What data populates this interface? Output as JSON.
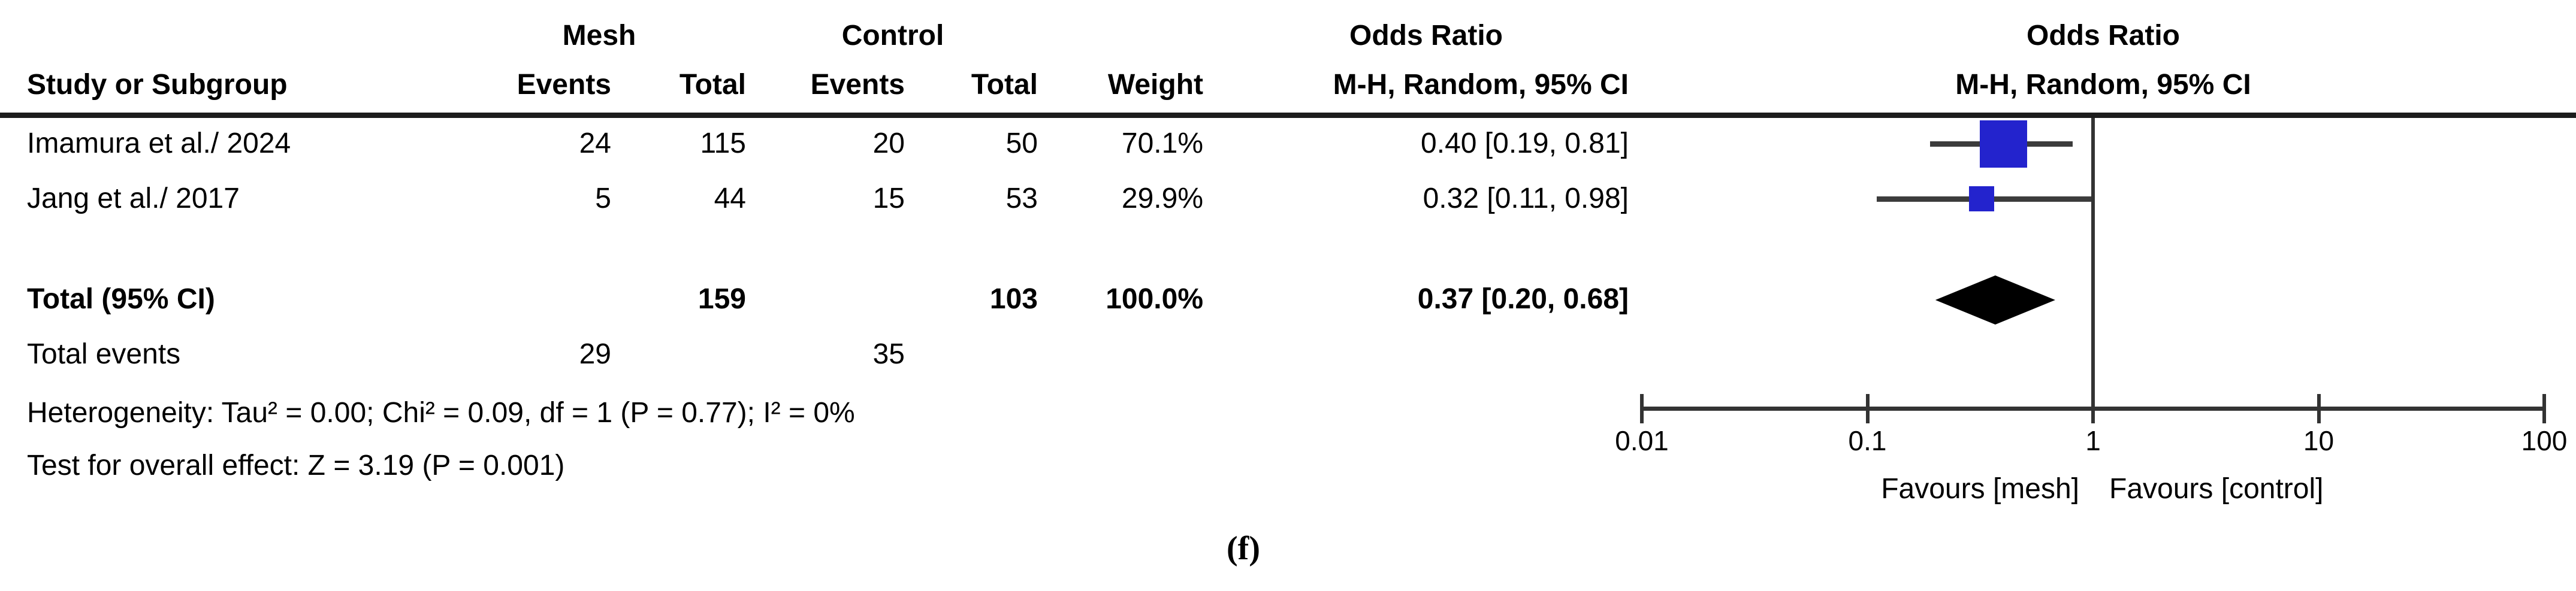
{
  "table": {
    "headers": {
      "group_mesh": "Mesh",
      "group_control": "Control",
      "study": "Study or Subgroup",
      "mesh_events": "Events",
      "mesh_total": "Total",
      "ctrl_events": "Events",
      "ctrl_total": "Total",
      "weight": "Weight",
      "or_col_line1": "Odds Ratio",
      "or_col_line2": "M-H, Random, 95% CI",
      "plot_col_line1": "Odds Ratio",
      "plot_col_line2": "M-H, Random, 95% CI"
    },
    "rows": [
      {
        "study": "Imamura et al./ 2024",
        "mesh_events": "24",
        "mesh_total": "115",
        "ctrl_events": "20",
        "ctrl_total": "50",
        "weight": "70.1%",
        "or_ci": "0.40 [0.19, 0.81]"
      },
      {
        "study": "Jang et al./ 2017",
        "mesh_events": "5",
        "mesh_total": "44",
        "ctrl_events": "15",
        "ctrl_total": "53",
        "weight": "29.9%",
        "or_ci": "0.32 [0.11, 0.98]"
      }
    ],
    "total_row": {
      "label": "Total (95% CI)",
      "mesh_total": "159",
      "ctrl_total": "103",
      "weight": "100.0%",
      "or_ci": "0.37 [0.20, 0.68]"
    },
    "total_events": {
      "label": "Total events",
      "mesh": "29",
      "ctrl": "35"
    },
    "heterogeneity": "Heterogeneity: Tau² = 0.00; Chi² = 0.09, df = 1 (P = 0.77); I² = 0%",
    "overall_effect": "Test for overall effect: Z = 3.19 (P = 0.001)"
  },
  "axis": {
    "tick_labels": [
      "0.01",
      "0.1",
      "1",
      "10",
      "100"
    ],
    "favours_left": "Favours [mesh]",
    "favours_right": "Favours [control]"
  },
  "figure_label": "(f)",
  "colors": {
    "marker_blue": "#2323CD",
    "diamond_black": "#000000",
    "ci_line": "#3C3C3C",
    "axis": "#333333",
    "header_rule": "#1C1C1C"
  },
  "chart_data": {
    "type": "forest",
    "effect_measure": "Odds Ratio",
    "model": "M-H, Random, 95% CI",
    "scale": "log10",
    "x_ticks": [
      0.01,
      0.1,
      1,
      10,
      100
    ],
    "xlim": [
      0.01,
      100
    ],
    "null_line": 1,
    "studies": [
      {
        "name": "Imamura et al./ 2024",
        "or": 0.4,
        "ci_low": 0.19,
        "ci_high": 0.81,
        "weight_pct": 70.1,
        "mesh_events": 24,
        "mesh_total": 115,
        "ctrl_events": 20,
        "ctrl_total": 50
      },
      {
        "name": "Jang et al./ 2017",
        "or": 0.32,
        "ci_low": 0.11,
        "ci_high": 0.98,
        "weight_pct": 29.9,
        "mesh_events": 5,
        "mesh_total": 44,
        "ctrl_events": 15,
        "ctrl_total": 53
      }
    ],
    "total": {
      "or": 0.37,
      "ci_low": 0.2,
      "ci_high": 0.68,
      "weight_pct": 100.0,
      "mesh_total": 159,
      "ctrl_total": 103,
      "mesh_events": 29,
      "ctrl_events": 35
    },
    "heterogeneity": {
      "tau2": 0.0,
      "chi2": 0.09,
      "df": 1,
      "p": 0.77,
      "i2_pct": 0
    },
    "overall_effect": {
      "z": 3.19,
      "p": 0.001
    }
  }
}
